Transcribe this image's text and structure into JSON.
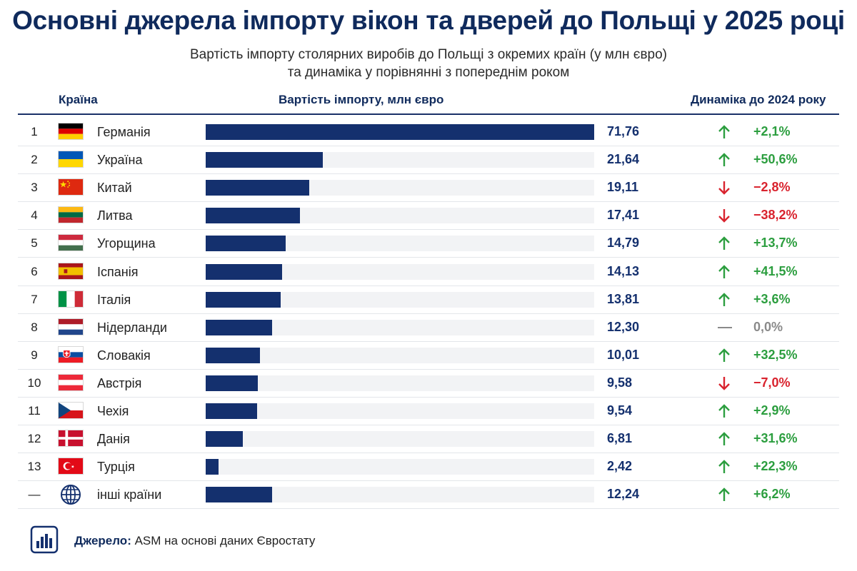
{
  "title": "Основні джерела імпорту вікон та дверей до Польщі у 2025 році",
  "subtitle_line1": "Вартість імпорту столярних виробів до Польщі з окремих країн (у млн євро)",
  "subtitle_line2": "та динаміка у порівнянні з попереднім роком",
  "headers": {
    "country": "Країна",
    "value": "Вартість імпорту, млн євро",
    "dynamics": "Динаміка до 2024 року"
  },
  "colors": {
    "bar": "#14306e",
    "up": "#2c9e3f",
    "down": "#d9232e",
    "flat": "#8a8a8a"
  },
  "chart_data": {
    "type": "bar",
    "orientation": "horizontal",
    "title": "Основні джерела імпорту вікон та дверей до Польщі у 2025 році",
    "xlabel": "Вартість імпорту, млн євро",
    "xlim": [
      0,
      71.76
    ],
    "categories": [
      "Германія",
      "Україна",
      "Китай",
      "Литва",
      "Угорщина",
      "Іспанія",
      "Італія",
      "Нідерланди",
      "Словакія",
      "Австрія",
      "Чехія",
      "Данія",
      "Турція",
      "інші країни"
    ],
    "values": [
      71.76,
      21.64,
      19.11,
      17.41,
      14.79,
      14.13,
      13.81,
      12.3,
      10.01,
      9.58,
      9.54,
      6.81,
      2.42,
      12.24
    ],
    "rows": [
      {
        "rank": "1",
        "country": "Германія",
        "flag": "de",
        "value": 71.76,
        "value_label": "71,76",
        "trend": "up",
        "change": "+2,1%"
      },
      {
        "rank": "2",
        "country": "Україна",
        "flag": "ua",
        "value": 21.64,
        "value_label": "21,64",
        "trend": "up",
        "change": "+50,6%"
      },
      {
        "rank": "3",
        "country": "Китай",
        "flag": "cn",
        "value": 19.11,
        "value_label": "19,11",
        "trend": "down",
        "change": "−2,8%"
      },
      {
        "rank": "4",
        "country": "Литва",
        "flag": "lt",
        "value": 17.41,
        "value_label": "17,41",
        "trend": "down",
        "change": "−38,2%"
      },
      {
        "rank": "5",
        "country": "Угорщина",
        "flag": "hu",
        "value": 14.79,
        "value_label": "14,79",
        "trend": "up",
        "change": "+13,7%"
      },
      {
        "rank": "6",
        "country": "Іспанія",
        "flag": "es",
        "value": 14.13,
        "value_label": "14,13",
        "trend": "up",
        "change": "+41,5%"
      },
      {
        "rank": "7",
        "country": "Італія",
        "flag": "it",
        "value": 13.81,
        "value_label": "13,81",
        "trend": "up",
        "change": "+3,6%"
      },
      {
        "rank": "8",
        "country": "Нідерланди",
        "flag": "nl",
        "value": 12.3,
        "value_label": "12,30",
        "trend": "flat",
        "change": "0,0%"
      },
      {
        "rank": "9",
        "country": "Словакія",
        "flag": "sk",
        "value": 10.01,
        "value_label": "10,01",
        "trend": "up",
        "change": "+32,5%"
      },
      {
        "rank": "10",
        "country": "Австрія",
        "flag": "at",
        "value": 9.58,
        "value_label": "9,58",
        "trend": "down",
        "change": "−7,0%"
      },
      {
        "rank": "11",
        "country": "Чехія",
        "flag": "cz",
        "value": 9.54,
        "value_label": "9,54",
        "trend": "up",
        "change": "+2,9%"
      },
      {
        "rank": "12",
        "country": "Данія",
        "flag": "dk",
        "value": 6.81,
        "value_label": "6,81",
        "trend": "up",
        "change": "+31,6%"
      },
      {
        "rank": "13",
        "country": "Турція",
        "flag": "tr",
        "value": 2.42,
        "value_label": "2,42",
        "trend": "up",
        "change": "+22,3%"
      },
      {
        "rank": "—",
        "country": "інші країни",
        "flag": "globe",
        "value": 12.24,
        "value_label": "12,24",
        "trend": "up",
        "change": "+6,2%"
      }
    ]
  },
  "source": {
    "label": "Джерело:",
    "text": " ASM на основі даних Євростату"
  }
}
